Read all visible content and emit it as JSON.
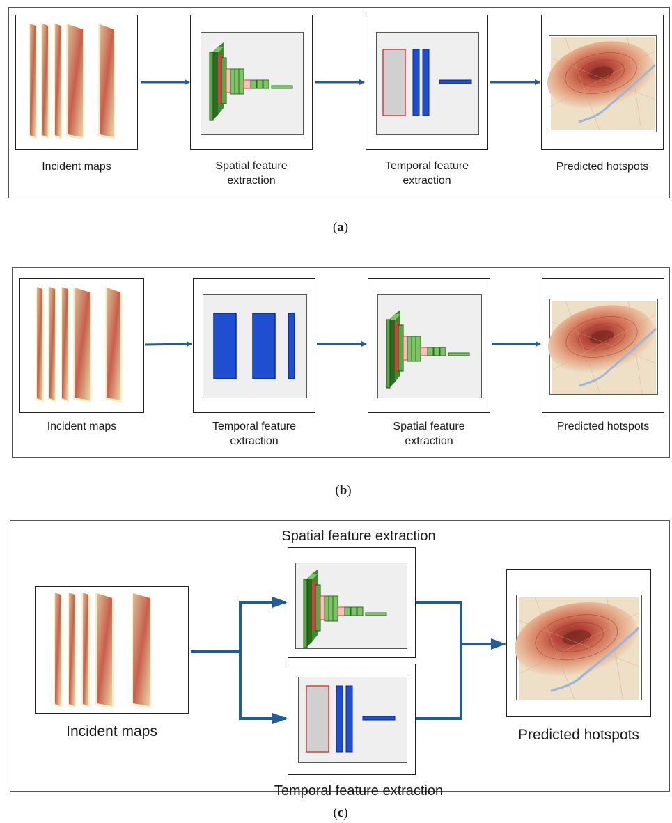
{
  "colors": {
    "arrow": "#1f5c99",
    "conv_green": "#5aa845",
    "conv_green_dark": "#2e6b22",
    "lstm_blue": "#1f4fd0",
    "lstm_blue_dark": "#0c2a80",
    "pool_red": "#e23a3a",
    "map_orange": "#d9633d"
  },
  "icons": {
    "incident_maps": "stacked-heatmap-icon",
    "spatial": "cnn-layers-icon",
    "temporal": "lstm-layers-icon",
    "hotspot": "hotspot-map-icon"
  },
  "panel_a": {
    "caption": "a",
    "incident_label": "Incident maps",
    "spatial_label_1": "Spatial feature",
    "spatial_label_2": "extraction",
    "temporal_label_1": "Temporal feature",
    "temporal_label_2": "extraction",
    "predicted_label": "Predicted hotspots"
  },
  "panel_b": {
    "caption": "b",
    "incident_label": "Incident maps",
    "temporal_label_1": "Temporal feature",
    "temporal_label_2": "extraction",
    "spatial_label_1": "Spatial feature",
    "spatial_label_2": "extraction",
    "predicted_label": "Predicted hotspots"
  },
  "panel_c": {
    "caption": "c",
    "spatial_label": "Spatial feature extraction",
    "temporal_label": "Temporal feature extraction",
    "incident_label": "Incident maps",
    "predicted_label": "Predicted hotspots"
  }
}
